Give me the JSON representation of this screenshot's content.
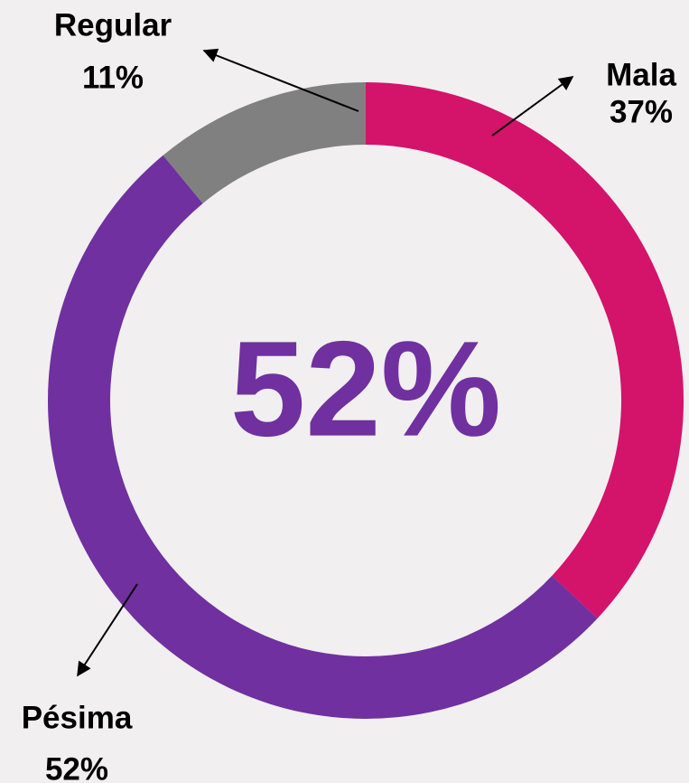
{
  "chart_data": {
    "type": "donut",
    "categories": [
      "Mala",
      "Pésima",
      "Regular"
    ],
    "values": [
      37,
      52,
      11
    ],
    "value_labels": [
      "37%",
      "52%",
      "11%"
    ],
    "colors": [
      "#d4136b",
      "#7030a0",
      "#808080"
    ],
    "center_label": "52%",
    "center_color": "#7030a0"
  }
}
